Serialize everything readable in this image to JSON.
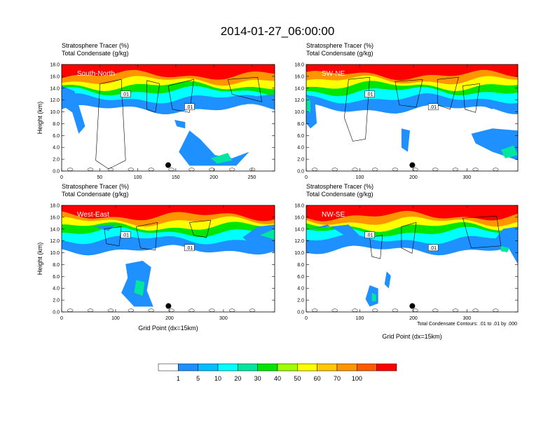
{
  "figure": {
    "title": "2014-01-27_06:00:00",
    "footnote": "Total Condensate Contours: .01 to .01 by .000",
    "contour_label": ".01"
  },
  "colorbar": {
    "ticks": [
      "1",
      "5",
      "10",
      "20",
      "30",
      "40",
      "50",
      "60",
      "70",
      "100"
    ],
    "colors": [
      "#ffffff",
      "#1e90ff",
      "#00bfff",
      "#00ffff",
      "#00e6a0",
      "#00e600",
      "#a0ff00",
      "#ffff00",
      "#ffc800",
      "#ff9600",
      "#ff5a00",
      "#ff0000"
    ]
  },
  "chart_data": [
    {
      "type": "heatmap",
      "header_line1": "Stratosphere Tracer   (%)",
      "header_line2": "Total Condensate   (g/kg)",
      "panel_label": "South-North",
      "ylabel": "Height (km)",
      "xlabel": "",
      "xlim": [
        0,
        280
      ],
      "ylim": [
        0,
        18
      ],
      "xticks": [
        0,
        50,
        100,
        150,
        200,
        250
      ],
      "yticks": [
        "0.0",
        "2.0",
        "4.0",
        "6.0",
        "8.0",
        "10.0",
        "12.0",
        "14.0",
        "16.0",
        "18.0"
      ],
      "marker": {
        "x": 140,
        "y": 1.0
      }
    },
    {
      "type": "heatmap",
      "header_line1": "Stratosphere Tracer   (%)",
      "header_line2": "Total Condensate   (g/kg)",
      "panel_label": "SW-NE",
      "ylabel": "",
      "xlabel": "",
      "xlim": [
        0,
        395
      ],
      "ylim": [
        0,
        18
      ],
      "xticks": [
        0,
        100,
        200,
        300
      ],
      "yticks": [
        "0.0",
        "2.0",
        "4.0",
        "6.0",
        "8.0",
        "10.0",
        "12.0",
        "14.0",
        "16.0",
        "18.0"
      ],
      "marker": {
        "x": 198,
        "y": 1.0
      }
    },
    {
      "type": "heatmap",
      "header_line1": "Stratosphere Tracer   (%)",
      "header_line2": "Total Condensate   (g/kg)",
      "panel_label": "West-East",
      "ylabel": "Height (km)",
      "xlabel": "Grid Point (dx=15km)",
      "xlim": [
        0,
        395
      ],
      "ylim": [
        0,
        18
      ],
      "xticks": [
        0,
        100,
        200,
        300
      ],
      "yticks": [
        "0.0",
        "2.0",
        "4.0",
        "6.0",
        "8.0",
        "10.0",
        "12.0",
        "14.0",
        "16.0",
        "18.0"
      ],
      "marker": {
        "x": 198,
        "y": 1.0
      }
    },
    {
      "type": "heatmap",
      "header_line1": "Stratosphere Tracer   (%)",
      "header_line2": "Total Condensate   (g/kg)",
      "panel_label": "NW-SE",
      "ylabel": "",
      "xlabel": "Grid Point (dx=15km)",
      "xlim": [
        0,
        395
      ],
      "ylim": [
        0,
        18
      ],
      "xticks": [
        0,
        100,
        200,
        300
      ],
      "yticks": [
        "0.0",
        "2.0",
        "4.0",
        "6.0",
        "8.0",
        "10.0",
        "12.0",
        "14.0",
        "16.0",
        "18.0"
      ],
      "marker": {
        "x": 198,
        "y": 1.0
      }
    }
  ]
}
